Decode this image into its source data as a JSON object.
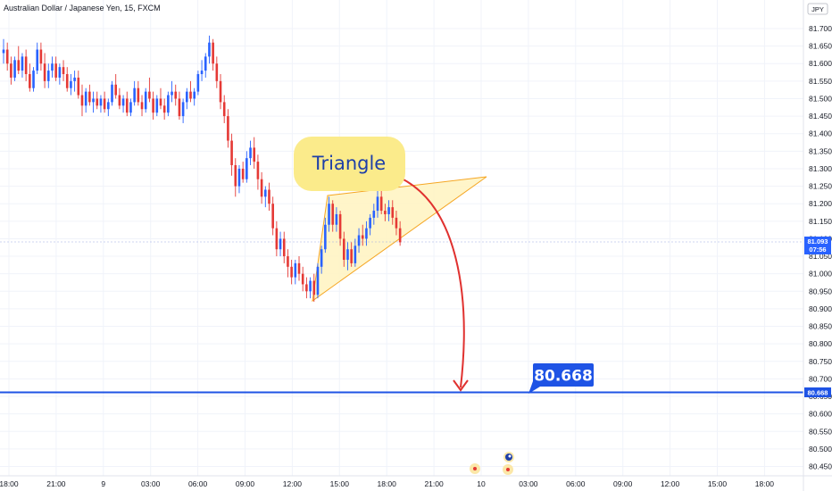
{
  "chart_data": {
    "type": "candlestick",
    "title": "Australian Dollar / Japanese Yen, 15, FXCM",
    "currency": "JPY",
    "ylim": [
      80.42,
      81.73
    ],
    "y_ticks": [
      "81.700",
      "81.650",
      "81.600",
      "81.550",
      "81.500",
      "81.450",
      "81.400",
      "81.350",
      "81.300",
      "81.250",
      "81.200",
      "81.150",
      "81.100",
      "81.050",
      "81.000",
      "80.950",
      "80.900",
      "80.850",
      "80.800",
      "80.750",
      "80.700",
      "80.650",
      "80.600",
      "80.550",
      "80.500",
      "80.450"
    ],
    "x_ticks": [
      "18:00",
      "21:00",
      "9",
      "03:00",
      "06:00",
      "09:00",
      "12:00",
      "15:00",
      "18:00",
      "21:00",
      "10",
      "03:00",
      "06:00",
      "09:00",
      "12:00",
      "15:00",
      "18:00"
    ],
    "last_price": "81.093",
    "countdown": "07:56",
    "target_price": "80.668",
    "target_label": "80.668",
    "annotation": "Triangle",
    "colors": {
      "up": "#2962ff",
      "down": "#e53935",
      "target_line": "#1e53e5",
      "arrow": "#e0312f",
      "triangle_fill": "#fff3c0",
      "triangle_stroke": "#f5a623",
      "bubble": "#fbeb8b"
    },
    "candles": [
      [
        81.63,
        81.67,
        81.6,
        81.64
      ],
      [
        81.64,
        81.66,
        81.58,
        81.6
      ],
      [
        81.6,
        81.62,
        81.54,
        81.56
      ],
      [
        81.56,
        81.62,
        81.55,
        81.61
      ],
      [
        81.61,
        81.65,
        81.57,
        81.58
      ],
      [
        81.58,
        81.63,
        81.56,
        81.62
      ],
      [
        81.62,
        81.64,
        81.55,
        81.57
      ],
      [
        81.57,
        81.6,
        81.52,
        81.53
      ],
      [
        81.53,
        81.59,
        81.52,
        81.58
      ],
      [
        81.58,
        81.66,
        81.57,
        81.64
      ],
      [
        81.64,
        81.66,
        81.58,
        81.6
      ],
      [
        81.6,
        81.63,
        81.53,
        81.55
      ],
      [
        81.55,
        81.6,
        81.53,
        81.58
      ],
      [
        81.58,
        81.62,
        81.56,
        81.6
      ],
      [
        81.6,
        81.62,
        81.55,
        81.56
      ],
      [
        81.56,
        81.6,
        81.54,
        81.59
      ],
      [
        81.59,
        81.61,
        81.55,
        81.57
      ],
      [
        81.57,
        81.59,
        81.52,
        81.53
      ],
      [
        81.53,
        81.57,
        81.51,
        81.55
      ],
      [
        81.55,
        81.58,
        81.52,
        81.56
      ],
      [
        81.56,
        81.58,
        81.5,
        81.51
      ],
      [
        81.51,
        81.54,
        81.45,
        81.48
      ],
      [
        81.48,
        81.53,
        81.46,
        81.52
      ],
      [
        81.52,
        81.54,
        81.48,
        81.49
      ],
      [
        81.49,
        81.52,
        81.46,
        81.5
      ],
      [
        81.5,
        81.52,
        81.47,
        81.48
      ],
      [
        81.48,
        81.51,
        81.46,
        81.5
      ],
      [
        81.5,
        81.52,
        81.46,
        81.47
      ],
      [
        81.47,
        81.5,
        81.45,
        81.49
      ],
      [
        81.49,
        81.55,
        81.48,
        81.54
      ],
      [
        81.54,
        81.57,
        81.5,
        81.51
      ],
      [
        81.51,
        81.53,
        81.47,
        81.48
      ],
      [
        81.48,
        81.51,
        81.46,
        81.5
      ],
      [
        81.5,
        81.52,
        81.45,
        81.46
      ],
      [
        81.46,
        81.5,
        81.45,
        81.49
      ],
      [
        81.49,
        81.55,
        81.48,
        81.53
      ],
      [
        81.53,
        81.55,
        81.48,
        81.49
      ],
      [
        81.49,
        81.51,
        81.45,
        81.47
      ],
      [
        81.47,
        81.53,
        81.46,
        81.52
      ],
      [
        81.52,
        81.56,
        81.49,
        81.5
      ],
      [
        81.5,
        81.52,
        81.44,
        81.46
      ],
      [
        81.46,
        81.51,
        81.45,
        81.5
      ],
      [
        81.5,
        81.53,
        81.47,
        81.48
      ],
      [
        81.48,
        81.5,
        81.44,
        81.46
      ],
      [
        81.46,
        81.52,
        81.45,
        81.51
      ],
      [
        81.51,
        81.55,
        81.49,
        81.52
      ],
      [
        81.52,
        81.54,
        81.48,
        81.5
      ],
      [
        81.5,
        81.52,
        81.44,
        81.45
      ],
      [
        81.45,
        81.5,
        81.43,
        81.49
      ],
      [
        81.49,
        81.53,
        81.47,
        81.52
      ],
      [
        81.52,
        81.55,
        81.49,
        81.5
      ],
      [
        81.5,
        81.53,
        81.48,
        81.52
      ],
      [
        81.52,
        81.58,
        81.51,
        81.57
      ],
      [
        81.57,
        81.61,
        81.55,
        81.58
      ],
      [
        81.58,
        81.63,
        81.56,
        81.62
      ],
      [
        81.62,
        81.68,
        81.6,
        81.66
      ],
      [
        81.66,
        81.67,
        81.58,
        81.6
      ],
      [
        81.6,
        81.62,
        81.53,
        81.55
      ],
      [
        81.55,
        81.57,
        81.47,
        81.49
      ],
      [
        81.49,
        81.51,
        81.43,
        81.45
      ],
      [
        81.45,
        81.47,
        81.36,
        81.38
      ],
      [
        81.38,
        81.4,
        81.28,
        81.31
      ],
      [
        81.31,
        81.33,
        81.22,
        81.25
      ],
      [
        81.25,
        81.31,
        81.23,
        81.3
      ],
      [
        81.3,
        81.32,
        81.26,
        81.27
      ],
      [
        81.27,
        81.35,
        81.26,
        81.33
      ],
      [
        81.33,
        81.38,
        81.31,
        81.36
      ],
      [
        81.36,
        81.39,
        81.3,
        81.32
      ],
      [
        81.32,
        81.34,
        81.24,
        81.27
      ],
      [
        81.27,
        81.29,
        81.2,
        81.22
      ],
      [
        81.22,
        81.25,
        81.19,
        81.24
      ],
      [
        81.24,
        81.26,
        81.18,
        81.2
      ],
      [
        81.2,
        81.22,
        81.11,
        81.13
      ],
      [
        81.13,
        81.15,
        81.05,
        81.07
      ],
      [
        81.07,
        81.12,
        81.05,
        81.1
      ],
      [
        81.1,
        81.12,
        81.03,
        81.05
      ],
      [
        81.05,
        81.07,
        80.99,
        81.02
      ],
      [
        81.02,
        81.04,
        80.97,
        80.99
      ],
      [
        80.99,
        81.04,
        80.97,
        81.03
      ],
      [
        81.03,
        81.05,
        80.98,
        81.0
      ],
      [
        81.0,
        81.02,
        80.95,
        80.97
      ],
      [
        80.97,
        80.99,
        80.93,
        80.95
      ],
      [
        80.95,
        80.99,
        80.93,
        80.98
      ],
      [
        80.98,
        81.0,
        80.92,
        80.94
      ],
      [
        80.94,
        81.03,
        80.93,
        81.02
      ],
      [
        81.02,
        81.08,
        81.0,
        81.07
      ],
      [
        81.07,
        81.16,
        81.06,
        81.14
      ],
      [
        81.14,
        81.22,
        81.12,
        81.2
      ],
      [
        81.2,
        81.21,
        81.12,
        81.14
      ],
      [
        81.14,
        81.19,
        81.12,
        81.17
      ],
      [
        81.17,
        81.18,
        81.08,
        81.1
      ],
      [
        81.1,
        81.12,
        81.02,
        81.04
      ],
      [
        81.04,
        81.09,
        81.01,
        81.07
      ],
      [
        81.07,
        81.09,
        81.02,
        81.03
      ],
      [
        81.03,
        81.1,
        81.02,
        81.08
      ],
      [
        81.08,
        81.13,
        81.06,
        81.11
      ],
      [
        81.11,
        81.14,
        81.08,
        81.1
      ],
      [
        81.1,
        81.15,
        81.08,
        81.13
      ],
      [
        81.13,
        81.17,
        81.11,
        81.16
      ],
      [
        81.16,
        81.2,
        81.14,
        81.18
      ],
      [
        81.18,
        81.24,
        81.16,
        81.22
      ],
      [
        81.22,
        81.25,
        81.17,
        81.18
      ],
      [
        81.18,
        81.2,
        81.15,
        81.17
      ],
      [
        81.17,
        81.21,
        81.15,
        81.19
      ],
      [
        81.19,
        81.21,
        81.14,
        81.16
      ],
      [
        81.16,
        81.18,
        81.11,
        81.13
      ],
      [
        81.13,
        81.15,
        81.08,
        81.09
      ]
    ]
  }
}
